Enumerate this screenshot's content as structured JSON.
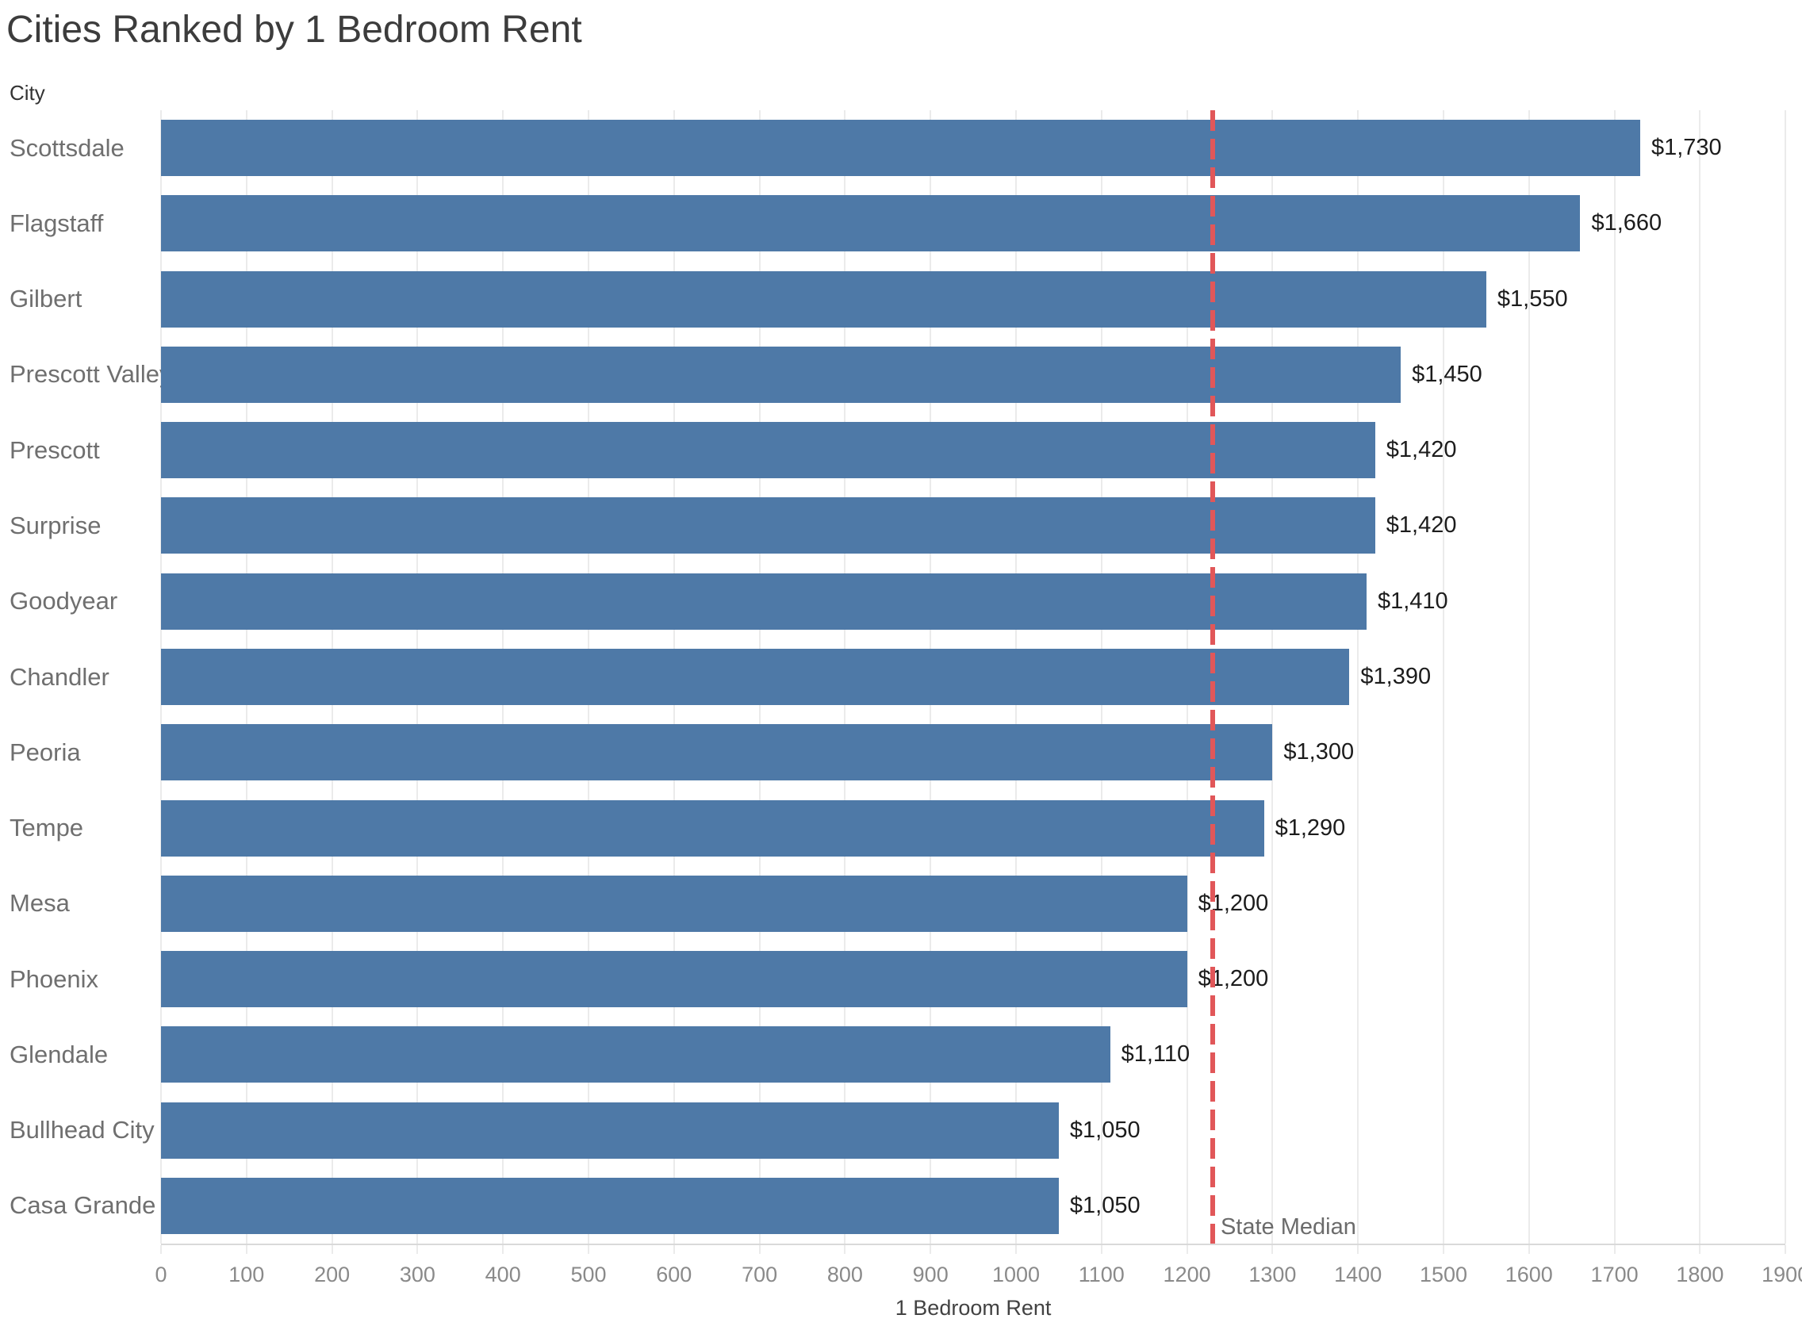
{
  "chart_data": {
    "type": "bar",
    "orientation": "horizontal",
    "title": "Cities Ranked by 1 Bedroom Rent",
    "xlabel": "1 Bedroom Rent",
    "ylabel": "City",
    "categories": [
      "Scottsdale",
      "Flagstaff",
      "Gilbert",
      "Prescott Valley",
      "Prescott",
      "Surprise",
      "Goodyear",
      "Chandler",
      "Peoria",
      "Tempe",
      "Mesa",
      "Phoenix",
      "Glendale",
      "Bullhead City",
      "Casa Grande"
    ],
    "values": [
      1730,
      1660,
      1550,
      1450,
      1420,
      1420,
      1410,
      1390,
      1300,
      1290,
      1200,
      1200,
      1110,
      1050,
      1050
    ],
    "value_labels": [
      "$1,730",
      "$1,660",
      "$1,550",
      "$1,450",
      "$1,420",
      "$1,420",
      "$1,410",
      "$1,390",
      "$1,300",
      "$1,290",
      "$1,200",
      "$1,200",
      "$1,110",
      "$1,050",
      "$1,050"
    ],
    "x_axis": {
      "min": 0,
      "max": 1900,
      "tick_step": 100,
      "tick_labels": [
        "0",
        "100",
        "200",
        "300",
        "400",
        "500",
        "600",
        "700",
        "800",
        "900",
        "1000",
        "1100",
        "1200",
        "1300",
        "1400",
        "1500",
        "1600",
        "1700",
        "1800",
        "1900"
      ]
    },
    "reference_line": {
      "label": "State Median",
      "value": 1230,
      "style": "dashed"
    },
    "grid": true,
    "legend": "none",
    "colors": {
      "bar": "#4e79a7",
      "reference_line": "#e15759",
      "grid": "#ebebeb",
      "axis_line": "#d9d9d9",
      "tick_label": "#8a8a8a",
      "category_label": "#6f6f6f",
      "value_label": "#1c1c1c",
      "title": "#3c3c3c",
      "axis_title": "#424242",
      "field_label": "#333333",
      "reference_label": "#6b6b6b",
      "background": "#ffffff"
    }
  }
}
